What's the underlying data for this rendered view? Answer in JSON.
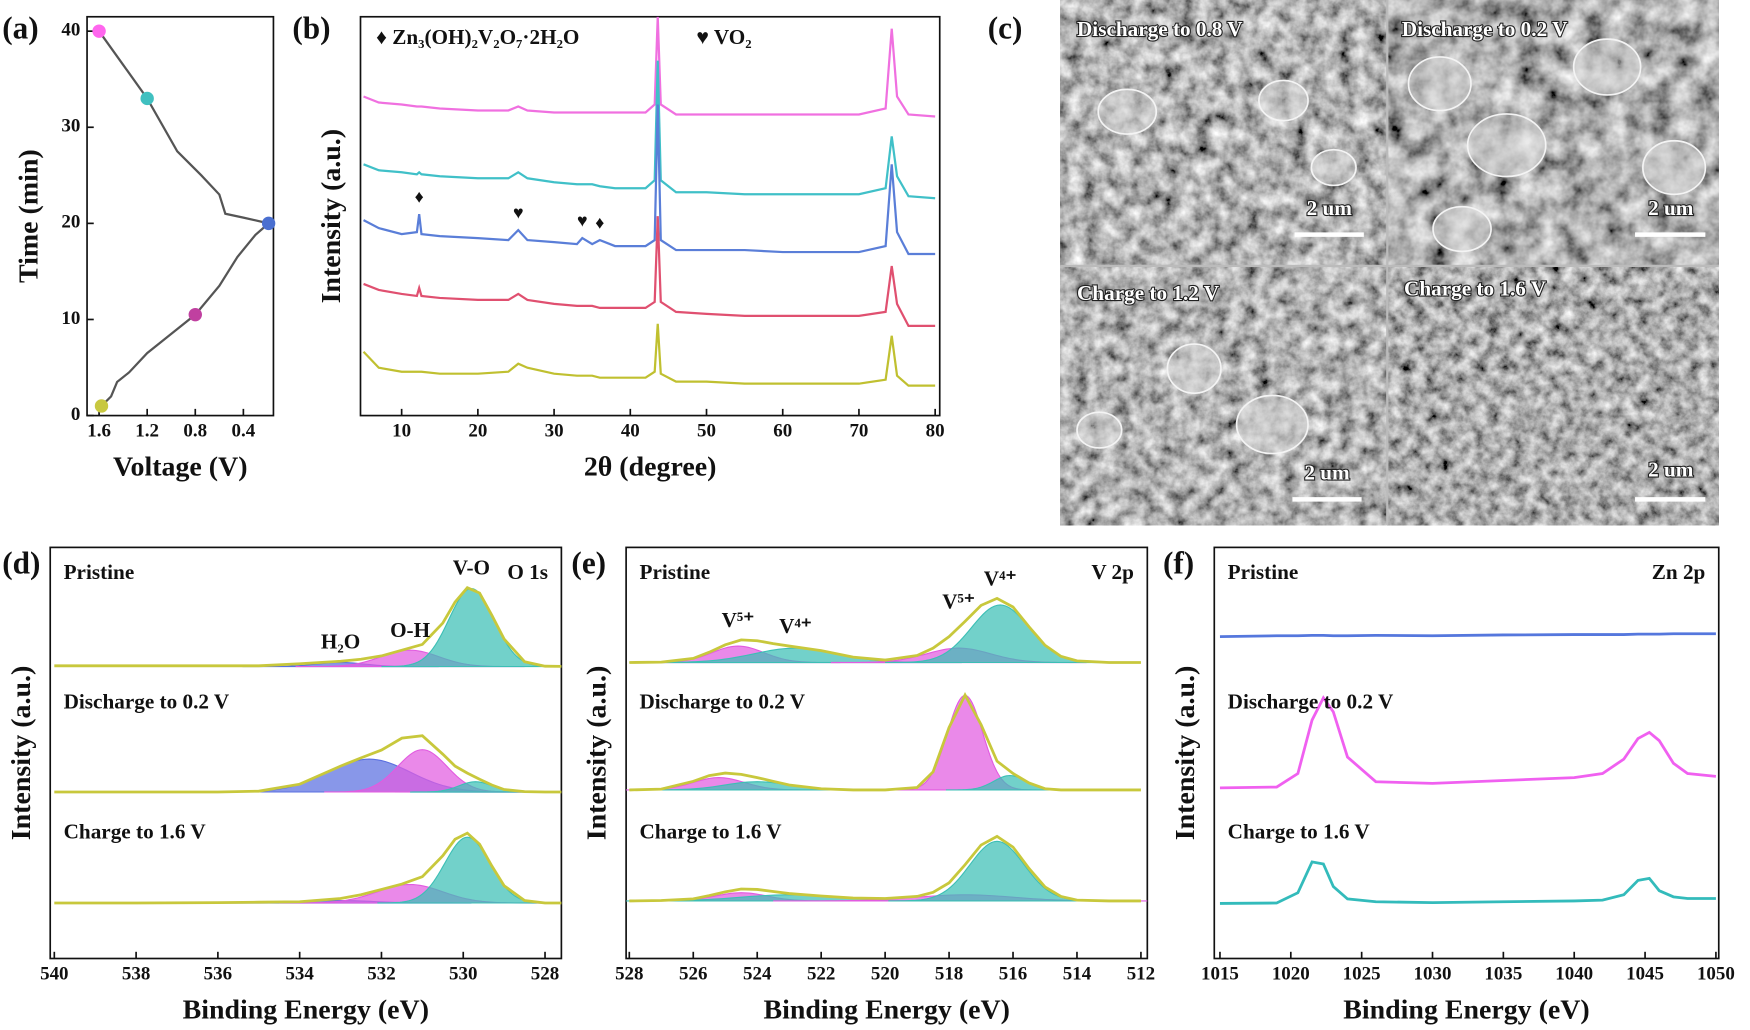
{
  "chart_data": [
    {
      "type": "line",
      "panel_label": "(a)",
      "x_label": "Voltage (V)",
      "y_label": "Time (min)",
      "xlim": [
        1.7,
        0.15
      ],
      "ylim": [
        0,
        41.5
      ],
      "xticks": [
        1.6,
        1.2,
        0.8,
        0.4
      ],
      "yticks": [
        0,
        10,
        20,
        30,
        40
      ],
      "x": [
        1.58,
        1.5,
        1.45,
        1.35,
        1.2,
        1.0,
        0.8,
        0.6,
        0.45,
        0.3,
        0.19,
        0.4,
        0.55,
        0.6,
        0.75,
        0.95,
        1.2,
        1.4,
        1.6
      ],
      "series": [
        {
          "color": "#555555",
          "values": [
            1,
            2,
            3.5,
            4.5,
            6.5,
            8.5,
            10.5,
            13.5,
            16.5,
            18.8,
            20,
            20.6,
            21,
            23,
            25,
            27.5,
            33,
            36.5,
            40
          ]
        }
      ],
      "markers": {
        "x": [
          1.6,
          1.2,
          0.19,
          0.8,
          1.58
        ],
        "y": [
          40,
          33,
          20,
          10.5,
          1
        ],
        "colors": [
          "#ff66ee",
          "#40c0c0",
          "#4a6fd0",
          "#c040a0",
          "#c8c840"
        ]
      }
    },
    {
      "type": "line",
      "panel_label": "(b)",
      "x_label": "2θ (degree)",
      "y_label": "Intensity (a.u.)",
      "xlim": [
        4.6,
        80.6
      ],
      "ylim": [
        0,
        100
      ],
      "xticks": [
        10,
        20,
        30,
        40,
        50,
        60,
        70,
        80
      ],
      "legend": [
        "♦ Zn₃(OH)₂V₂O₇·2H₂O",
        "♥ VO₂"
      ],
      "x": [
        5,
        7,
        10,
        12,
        12.3,
        12.6,
        15,
        20,
        24,
        25.3,
        26.5,
        30,
        33,
        33.7,
        35,
        36,
        38,
        42,
        43.2,
        43.6,
        44,
        46,
        50,
        55,
        60,
        65,
        70,
        73.5,
        74.3,
        75,
        76.5,
        80
      ],
      "series": [
        {
          "color": "#f070e0",
          "values": [
            80,
            78.5,
            78,
            77.5,
            77.5,
            77.5,
            77,
            76.5,
            76.5,
            77.5,
            76.5,
            76,
            76,
            76,
            76,
            76,
            76,
            76,
            78,
            100,
            78,
            75.5,
            75.5,
            75.5,
            75.5,
            75.5,
            75.5,
            77,
            97,
            80,
            75.5,
            75
          ]
        },
        {
          "color": "#40c0c8",
          "values": [
            63,
            61.5,
            61,
            60.5,
            61,
            60.5,
            60,
            59.5,
            59.5,
            61,
            59.5,
            58.5,
            58,
            58,
            58,
            57.5,
            57,
            57,
            59,
            89,
            59,
            56,
            56,
            55.5,
            55.5,
            55.5,
            55.5,
            57,
            70,
            60,
            55,
            54.5
          ]
        },
        {
          "color": "#5a7ed8",
          "values": [
            49,
            47,
            45.5,
            46,
            50.5,
            45.5,
            45,
            44.5,
            44,
            46.5,
            44,
            43.5,
            43,
            44.5,
            43,
            44,
            42.5,
            42.5,
            44,
            78,
            44,
            41.5,
            41.5,
            41.5,
            41,
            41,
            41,
            42.5,
            63,
            46,
            40.5,
            40.5
          ]
        },
        {
          "color": "#e05070",
          "values": [
            33,
            31.5,
            30.5,
            30,
            32,
            30,
            29.5,
            29,
            29,
            30.5,
            29,
            28,
            27.5,
            27.5,
            27.5,
            27,
            27,
            27,
            28.5,
            50,
            28.5,
            26,
            25.5,
            25,
            25,
            25,
            25,
            26,
            37.5,
            28,
            22.5,
            22.5
          ]
        },
        {
          "color": "#c0c030",
          "values": [
            16,
            12,
            11,
            11,
            11,
            11,
            10.5,
            10.5,
            11,
            13,
            12,
            10.5,
            10,
            10,
            10,
            9.5,
            9.5,
            9.5,
            11,
            23,
            10.5,
            8.5,
            8.5,
            8,
            8,
            8,
            8,
            9,
            20,
            10,
            7.5,
            7.5
          ]
        }
      ],
      "annotations": [
        {
          "symbol": "♦",
          "x": 12.3,
          "series": 2
        },
        {
          "symbol": "♥",
          "x": 25.3,
          "series": 2
        },
        {
          "symbol": "♥",
          "x": 33.7,
          "series": 2
        },
        {
          "symbol": "♦",
          "x": 36,
          "series": 2
        }
      ]
    },
    {
      "type": "xps",
      "panel_label": "(d)",
      "x_label": "Binding Energy (eV)",
      "y_label": "Intensity (a.u.)",
      "corner_label": "O 1s",
      "xlim": [
        540.1,
        527.6
      ],
      "ylim": [
        0,
        100
      ],
      "xticks": [
        540,
        538,
        536,
        534,
        532,
        530,
        528
      ],
      "x": [
        540,
        538,
        536,
        535,
        534,
        533,
        532.5,
        532,
        531.5,
        531,
        530.5,
        530.2,
        529.9,
        529.6,
        529.3,
        529,
        528.5,
        528,
        527
      ],
      "spectra": [
        {
          "name": "Pristine",
          "color": "#c8c83c",
          "baseline": 71,
          "envelope": [
            71.2,
            71.2,
            71.2,
            71.2,
            71.7,
            72.3,
            72.8,
            73.6,
            75,
            76.4,
            81.6,
            86.7,
            90.2,
            88.9,
            83.5,
            77.7,
            72.2,
            71.1,
            71
          ],
          "components": [
            {
              "label": "H₂O",
              "color": "#5a6fe0",
              "center": 533,
              "height": 1,
              "width": 0.6
            },
            {
              "label": "O-H",
              "color": "#e25be0",
              "center": 531.3,
              "height": 4,
              "width": 0.7
            },
            {
              "label": "V-O",
              "color": "#3cbfb5",
              "center": 529.8,
              "height": 19,
              "width": 0.55
            }
          ]
        },
        {
          "name": "Discharge to 0.2 V",
          "color": "#c8c83c",
          "baseline": 40.5,
          "envelope": [
            40.5,
            40.5,
            40.5,
            40.7,
            42.4,
            46.8,
            48.8,
            50.7,
            53.6,
            54.2,
            49.7,
            46.8,
            45.1,
            43.6,
            42.2,
            41.1,
            40.6,
            40.5,
            40.5
          ],
          "components": [
            {
              "color": "#5a6fe0",
              "center": 532.3,
              "height": 8,
              "width": 1.0
            },
            {
              "color": "#e25be0",
              "center": 531.0,
              "height": 10.3,
              "width": 0.6
            },
            {
              "color": "#3cbfb5",
              "center": 529.7,
              "height": 2.5,
              "width": 0.4
            }
          ]
        },
        {
          "name": "Charge to 1.6 V",
          "color": "#c8c83c",
          "baseline": 13.5,
          "envelope": [
            13.5,
            13.5,
            13.6,
            13.7,
            13.8,
            14.6,
            15.5,
            16.8,
            18.1,
            19.9,
            25,
            29,
            30.5,
            27.8,
            22.5,
            17.7,
            14.1,
            13.5,
            13.5
          ],
          "components": [
            {
              "color": "#5a6fe0",
              "center": 533,
              "height": 0.6,
              "width": 0.8
            },
            {
              "color": "#e25be0",
              "center": 531.3,
              "height": 4.5,
              "width": 0.8
            },
            {
              "color": "#3cbfb5",
              "center": 529.9,
              "height": 16,
              "width": 0.55
            }
          ]
        }
      ]
    },
    {
      "type": "xps",
      "panel_label": "(e)",
      "x_label": "Binding Energy (eV)",
      "y_label": "Intensity (a.u.)",
      "corner_label": "V 2p",
      "xlim": [
        528.1,
        511.8
      ],
      "ylim": [
        0,
        100
      ],
      "xticks": [
        528,
        526,
        524,
        522,
        520,
        518,
        516,
        514,
        512
      ],
      "x": [
        528,
        527,
        526,
        525.5,
        525,
        524.5,
        524,
        523.5,
        523,
        522,
        521,
        520,
        519,
        518.5,
        518,
        517.5,
        517,
        516.5,
        516,
        515.5,
        515,
        514.5,
        514,
        513,
        512
      ],
      "spectra": [
        {
          "name": "Pristine",
          "color": "#c8c83c",
          "baseline": 72,
          "envelope": [
            72,
            72.1,
            73,
            74.5,
            76.3,
            77.5,
            77.3,
            76.6,
            76,
            74.9,
            73.3,
            72.6,
            73.7,
            75.5,
            78.3,
            82,
            85.9,
            87.6,
            85.5,
            80.7,
            76.2,
            73.5,
            72.4,
            72,
            72
          ],
          "components": [
            {
              "label": "V⁵⁺",
              "color": "#e25be0",
              "center": 524.6,
              "height": 4,
              "width": 0.8
            },
            {
              "label": "V⁴⁺",
              "color": "#3cbfb5",
              "center": 522.8,
              "height": 3.5,
              "width": 1.3
            },
            {
              "label": "V⁵⁺",
              "color": "#e25be0",
              "center": 517.7,
              "height": 3.5,
              "width": 1
            },
            {
              "label": "V⁴⁺",
              "color": "#3cbfb5",
              "center": 516.4,
              "height": 14,
              "width": 0.9
            }
          ]
        },
        {
          "name": "Discharge to 0.2 V",
          "color": "#c8c83c",
          "baseline": 41,
          "envelope": [
            41,
            41.2,
            43.1,
            44.5,
            45.1,
            44.8,
            44,
            43.1,
            42.2,
            41.3,
            41,
            41,
            41.6,
            45.4,
            56.2,
            64.1,
            56.9,
            48,
            45,
            42.7,
            41.3,
            41,
            41,
            41,
            41
          ],
          "components": [
            {
              "color": "#e25be0",
              "center": 525.2,
              "height": 3,
              "width": 0.8
            },
            {
              "color": "#3cbfb5",
              "center": 524,
              "height": 2,
              "width": 1
            },
            {
              "color": "#e25be0",
              "center": 517.5,
              "height": 23,
              "width": 0.55
            },
            {
              "color": "#3cbfb5",
              "center": 516.1,
              "height": 3.5,
              "width": 0.5
            }
          ]
        },
        {
          "name": "Charge to 1.6 V",
          "color": "#c8c83c",
          "baseline": 14,
          "envelope": [
            14,
            14.1,
            14.5,
            15.3,
            16.2,
            16.9,
            16.8,
            16.3,
            15.8,
            15.2,
            14.7,
            14.6,
            15.1,
            16.1,
            18.4,
            22.8,
            27.6,
            29.7,
            27.1,
            21.9,
            17.4,
            15.1,
            14.2,
            14,
            14
          ],
          "components": [
            {
              "color": "#e25be0",
              "center": 524.5,
              "height": 2,
              "width": 0.8
            },
            {
              "color": "#3cbfb5",
              "center": 523,
              "height": 1.5,
              "width": 1.5
            },
            {
              "color": "#e25be0",
              "center": 517.5,
              "height": 1.5,
              "width": 1.5
            },
            {
              "color": "#3cbfb5",
              "center": 516.5,
              "height": 14.5,
              "width": 0.85
            }
          ]
        }
      ]
    },
    {
      "type": "xps",
      "panel_label": "(f)",
      "x_label": "Binding Energy (eV)",
      "y_label": "Intensity (a.u.)",
      "corner_label": "Zn 2p",
      "xlim": [
        1014.6,
        1050.2
      ],
      "ylim": [
        0,
        100
      ],
      "xticks": [
        1015,
        1020,
        1025,
        1030,
        1035,
        1040,
        1045,
        1050
      ],
      "x": [
        1015,
        1019,
        1020.5,
        1021.5,
        1022.3,
        1023,
        1024,
        1026,
        1030,
        1035,
        1040,
        1042,
        1043.5,
        1044.5,
        1045.3,
        1046,
        1047,
        1048,
        1050
      ],
      "spectra": [
        {
          "name": "Pristine",
          "color": "#5577dd",
          "envelope": [
            78.3,
            78.5,
            78.5,
            78.6,
            78.6,
            78.5,
            78.5,
            78.6,
            78.5,
            78.7,
            78.8,
            78.8,
            78.8,
            78.9,
            78.9,
            78.9,
            79,
            79,
            79
          ]
        },
        {
          "name": "Discharge to 0.2 V",
          "color": "#f060f0",
          "envelope": [
            41.5,
            41.7,
            45,
            58,
            63.4,
            60,
            49,
            43,
            42.6,
            43.3,
            44,
            45,
            48.5,
            53.5,
            55,
            53,
            47.5,
            45,
            44.3
          ]
        },
        {
          "name": "Charge to 1.6 V",
          "color": "#33bbbb",
          "envelope": [
            13.4,
            13.5,
            16,
            23.5,
            23,
            17.5,
            14.5,
            13.8,
            13.6,
            13.8,
            14,
            14.2,
            15.5,
            19,
            19.5,
            16.5,
            15,
            14.6,
            14.6
          ]
        }
      ]
    }
  ],
  "sem_panel": {
    "label": "(c)",
    "images": [
      {
        "caption": "Discharge to 0.8 V",
        "scale_bar": "2 um"
      },
      {
        "caption": "Discharge to 0.2 V",
        "scale_bar": "2 um"
      },
      {
        "caption": "Charge to 1.2 V",
        "scale_bar": "2 um"
      },
      {
        "caption": "Charge to 1.6 V",
        "scale_bar": "2 um"
      }
    ]
  }
}
